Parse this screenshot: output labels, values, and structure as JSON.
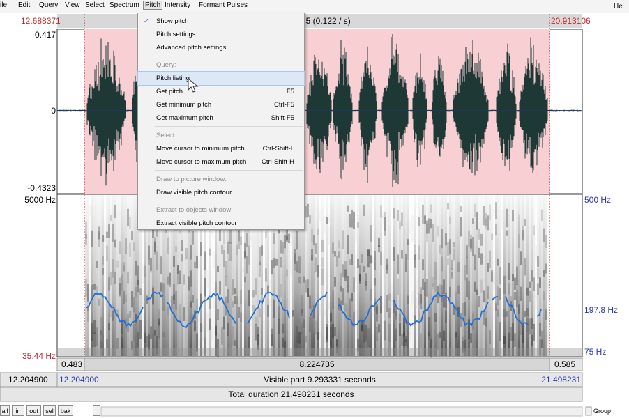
{
  "menu_bar": {
    "items": [
      "ile",
      "Edit",
      "Query",
      "View",
      "Select",
      "Spectrum",
      "Pitch",
      "Intensity",
      "Formant",
      "Pulses"
    ],
    "help": "He"
  },
  "top_bar": {
    "left": "12.688371",
    "center": "35 (0.122 / s)",
    "right": "20.913106"
  },
  "waveform": {
    "max": "0.417",
    "zero": "0",
    "min": "-0.4323"
  },
  "spectrogram": {
    "freq_max": "5000 Hz",
    "freq_min": "35.44 Hz",
    "pitch_max": "500 Hz",
    "pitch_mid": "197.8 Hz",
    "pitch_min": "75 Hz"
  },
  "selection_bar": {
    "left": "0.483",
    "center": "8.224735",
    "right": "0.585"
  },
  "visible_bar": {
    "window_start": "12.204900",
    "start": "12.204900",
    "center": "Visible part 9.293331 seconds",
    "end": "21.498231"
  },
  "total_bar": {
    "text": "Total duration 21.498231 seconds"
  },
  "buttons": [
    "all",
    "in",
    "out",
    "sel",
    "bak"
  ],
  "group_checkbox": "Group",
  "pitch_menu": {
    "top_items": [
      {
        "label": "Show pitch",
        "checked": true
      },
      {
        "label": "Pitch settings..."
      },
      {
        "label": "Advanced pitch settings..."
      }
    ],
    "sections": [
      {
        "header": "Query:",
        "items": [
          {
            "label": "Pitch listing",
            "highlighted": true
          },
          {
            "label": "Get pitch",
            "shortcut": "F5"
          },
          {
            "label": "Get minimum pitch",
            "shortcut": "Ctrl-F5"
          },
          {
            "label": "Get maximum pitch",
            "shortcut": "Shift-F5"
          }
        ]
      },
      {
        "header": "Select:",
        "items": [
          {
            "label": "Move cursor to minimum pitch",
            "shortcut": "Ctrl-Shift-L"
          },
          {
            "label": "Move cursor to maximum pitch",
            "shortcut": "Ctrl-Shift-H"
          }
        ]
      },
      {
        "header": "Draw to picture window:",
        "items": [
          {
            "label": "Draw visible pitch contour..."
          }
        ]
      },
      {
        "header": "Extract to objects window:",
        "items": [
          {
            "label": "Extract visible pitch contour"
          }
        ]
      }
    ]
  }
}
